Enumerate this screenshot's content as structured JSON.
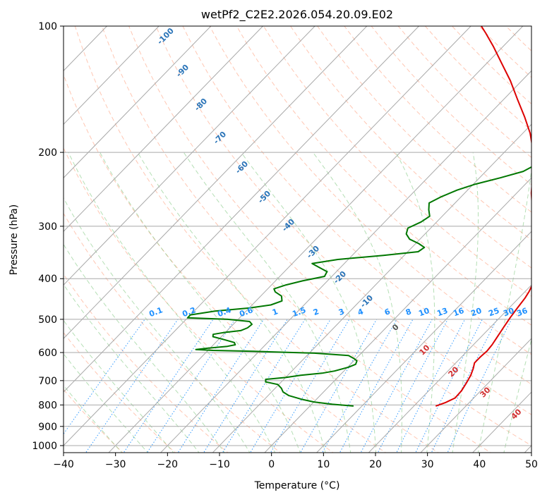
{
  "chart_data": {
    "type": "line",
    "subtype": "skew-T log-P diagram",
    "title": "wetPf2_C2E2.2026.054.20.09.E02",
    "xlabel": "Temperature (°C)",
    "ylabel": "Pressure (hPa)",
    "xlim": [
      -40,
      50
    ],
    "ylim": [
      1050,
      100
    ],
    "y_scale": "log",
    "grid": true,
    "x_ticks": [
      "−40",
      "−30",
      "−20",
      "−10",
      "0",
      "10",
      "20",
      "30",
      "40",
      "50"
    ],
    "y_ticks": [
      "100",
      "200",
      "300",
      "400",
      "500",
      "600",
      "700",
      "800",
      "900",
      "1000"
    ],
    "series": [
      {
        "color": "#dd0000",
        "points": [
          [
            805,
            24.2
          ],
          [
            790,
            25.4
          ],
          [
            770,
            26.4
          ],
          [
            740,
            26.3
          ],
          [
            710,
            25.8
          ],
          [
            680,
            25.2
          ],
          [
            655,
            24.4
          ],
          [
            635,
            23.6
          ],
          [
            615,
            23.6
          ],
          [
            595,
            23.8
          ],
          [
            575,
            23.6
          ],
          [
            555,
            23.2
          ],
          [
            525,
            22.6
          ],
          [
            495,
            22.0
          ],
          [
            470,
            21.6
          ],
          [
            445,
            21.2
          ],
          [
            430,
            20.8
          ],
          [
            415,
            20.2
          ],
          [
            400,
            19.4
          ],
          [
            385,
            18.6
          ],
          [
            370,
            17.4
          ],
          [
            352,
            15.2
          ],
          [
            335,
            13.2
          ],
          [
            315,
            11.0
          ],
          [
            295,
            8.6
          ],
          [
            270,
            5.6
          ],
          [
            250,
            2.8
          ],
          [
            230,
            0.2
          ],
          [
            212,
            -2.4
          ],
          [
            195,
            -5.4
          ],
          [
            180,
            -8.6
          ],
          [
            165,
            -12.6
          ],
          [
            150,
            -17.2
          ],
          [
            135,
            -22.2
          ],
          [
            122,
            -27.4
          ],
          [
            112,
            -31.8
          ],
          [
            104,
            -35.8
          ],
          [
            100,
            -38.0
          ]
        ]
      },
      {
        "color": "#007700",
        "points": [
          [
            805,
            8.4
          ],
          [
            797,
            4.0
          ],
          [
            787,
            0.0
          ],
          [
            775,
            -3.0
          ],
          [
            760,
            -6.0
          ],
          [
            745,
            -7.8
          ],
          [
            730,
            -8.8
          ],
          [
            715,
            -10.2
          ],
          [
            705,
            -13.0
          ],
          [
            695,
            -13.5
          ],
          [
            688,
            -10.0
          ],
          [
            680,
            -7.5
          ],
          [
            672,
            -3.8
          ],
          [
            664,
            -1.8
          ],
          [
            650,
            0.2
          ],
          [
            640,
            1.0
          ],
          [
            628,
            0.6
          ],
          [
            620,
            -0.4
          ],
          [
            610,
            -2.0
          ],
          [
            602,
            -9.0
          ],
          [
            596,
            -21.0
          ],
          [
            593,
            -29.0
          ],
          [
            590,
            -32.5
          ],
          [
            586,
            -30.5
          ],
          [
            580,
            -27.0
          ],
          [
            575,
            -25.8
          ],
          [
            568,
            -26.4
          ],
          [
            560,
            -28.6
          ],
          [
            550,
            -31.6
          ],
          [
            543,
            -32.0
          ],
          [
            538,
            -30.4
          ],
          [
            532,
            -27.4
          ],
          [
            524,
            -26.6
          ],
          [
            514,
            -26.4
          ],
          [
            506,
            -27.4
          ],
          [
            500,
            -32.0
          ],
          [
            496,
            -40.0
          ],
          [
            488,
            -40.0
          ],
          [
            478,
            -36.0
          ],
          [
            470,
            -30.0
          ],
          [
            462,
            -26.4
          ],
          [
            452,
            -25.0
          ],
          [
            440,
            -26.0
          ],
          [
            430,
            -28.0
          ],
          [
            423,
            -28.8
          ],
          [
            414,
            -27.2
          ],
          [
            405,
            -24.8
          ],
          [
            395,
            -21.4
          ],
          [
            385,
            -21.8
          ],
          [
            375,
            -24.4
          ],
          [
            368,
            -26.2
          ],
          [
            360,
            -22.0
          ],
          [
            352,
            -14.0
          ],
          [
            345,
            -8.0
          ],
          [
            337,
            -7.6
          ],
          [
            330,
            -9.4
          ],
          [
            322,
            -12.0
          ],
          [
            313,
            -13.6
          ],
          [
            303,
            -14.4
          ],
          [
            293,
            -13.0
          ],
          [
            284,
            -12.4
          ],
          [
            274,
            -13.8
          ],
          [
            264,
            -15.0
          ],
          [
            255,
            -13.8
          ],
          [
            246,
            -12.0
          ],
          [
            238,
            -9.6
          ],
          [
            230,
            -6.0
          ],
          [
            222,
            -2.8
          ],
          [
            214,
            -1.6
          ],
          [
            207,
            -1.8
          ],
          [
            200,
            -3.4
          ],
          [
            194,
            -4.8
          ],
          [
            185,
            -5.6
          ],
          [
            175,
            -6.0
          ],
          [
            165,
            -6.4
          ],
          [
            155,
            -6.8
          ],
          [
            147,
            -8.0
          ],
          [
            140,
            -9.0
          ],
          [
            132,
            -9.4
          ],
          [
            125,
            -9.0
          ],
          [
            118,
            -9.0
          ],
          [
            113,
            -8.6
          ],
          [
            107,
            -7.6
          ],
          [
            103,
            -6.2
          ],
          [
            100,
            -5.6
          ]
        ]
      }
    ],
    "isotherm_color": "#a9a9a9",
    "dry_adiabat_color": "#ff9975",
    "moist_adiabat_color": "#79c479",
    "mixing_ratio_color": "#1e90ff",
    "theta_label_color": "#2a74b8",
    "theta_e_label_color": "#d03030",
    "dry_adiabat_labels": [
      "-100",
      "-90",
      "-80",
      "-70",
      "-60",
      "-50",
      "-40",
      "-30",
      "-20",
      "-10"
    ],
    "moist_adiabat_labels": [
      "0",
      "10",
      "20",
      "30",
      "40"
    ],
    "mixing_ratio_labels": [
      "0.1",
      "0.2",
      "0.4",
      "0.6",
      "1",
      "1.5",
      "2",
      "3",
      "4",
      "6",
      "8",
      "10",
      "13",
      "16",
      "20",
      "25",
      "30",
      "36"
    ]
  }
}
